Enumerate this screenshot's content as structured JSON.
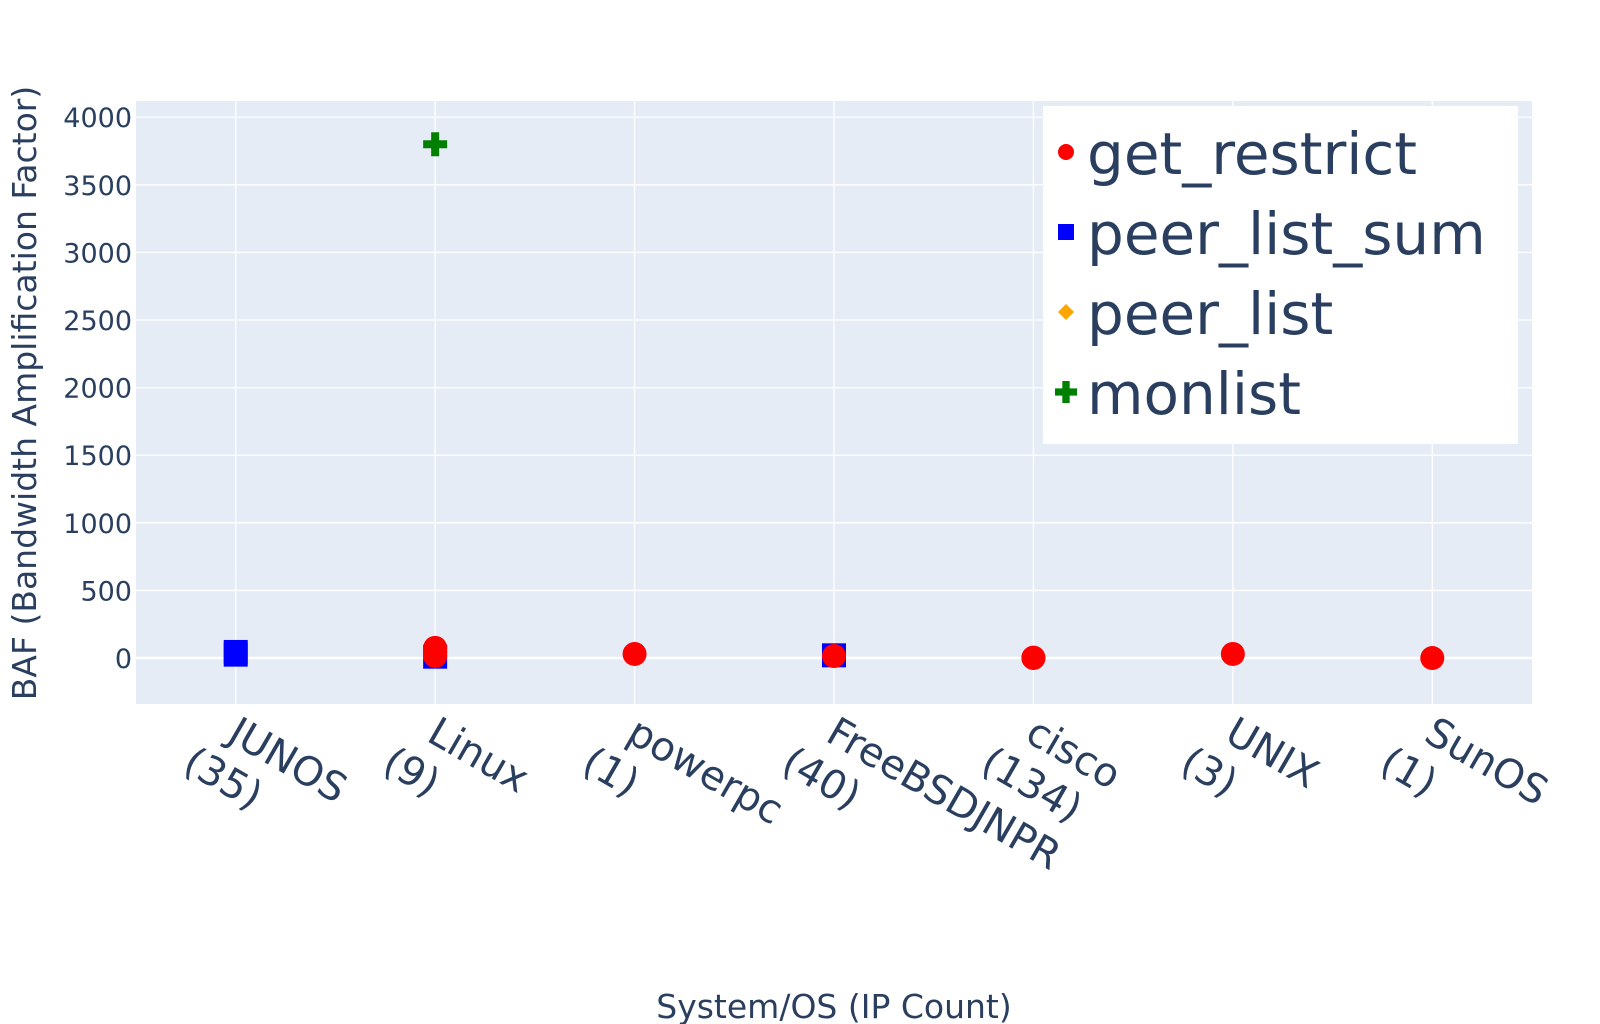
{
  "chart_data": {
    "type": "scatter",
    "title": "",
    "xlabel": "System/OS (IP Count)",
    "ylabel": "BAF (Bandwidth Amplification Factor)",
    "ylim": [
      -340,
      4120
    ],
    "yticks": [
      0,
      500,
      1000,
      1500,
      2000,
      2500,
      3000,
      3500,
      4000
    ],
    "grid": true,
    "legend_position": "top-right",
    "categories": [
      [
        "JUNOS",
        "(35)"
      ],
      [
        "Linux",
        "(9)"
      ],
      [
        "powerpc",
        "(1)"
      ],
      [
        "FreeBSDJNPR",
        "(40)"
      ],
      [
        "cisco",
        "(134)"
      ],
      [
        "UNIX",
        "(3)"
      ],
      [
        "SunOS",
        "(1)"
      ]
    ],
    "series": [
      {
        "name": "get_restrict",
        "marker": "circle",
        "color": "#ff0000",
        "points": [
          {
            "x": 1,
            "y": 75
          },
          {
            "x": 1,
            "y": 40
          },
          {
            "x": 1,
            "y": 15
          },
          {
            "x": 2,
            "y": 30
          },
          {
            "x": 3,
            "y": 15
          },
          {
            "x": 4,
            "y": 3
          },
          {
            "x": 4,
            "y": 0
          },
          {
            "x": 5,
            "y": 30
          },
          {
            "x": 6,
            "y": 0
          }
        ]
      },
      {
        "name": "peer_list_sum",
        "marker": "square",
        "color": "#0000ff",
        "points": [
          {
            "x": 0,
            "y": 45
          },
          {
            "x": 0,
            "y": 25
          },
          {
            "x": 1,
            "y": 10
          },
          {
            "x": 3,
            "y": 20
          }
        ]
      },
      {
        "name": "peer_list",
        "marker": "diamond",
        "color": "#ffa500",
        "points": []
      },
      {
        "name": "monlist",
        "marker": "cross",
        "color": "#008000",
        "points": [
          {
            "x": 1,
            "y": 3800
          }
        ]
      }
    ]
  }
}
